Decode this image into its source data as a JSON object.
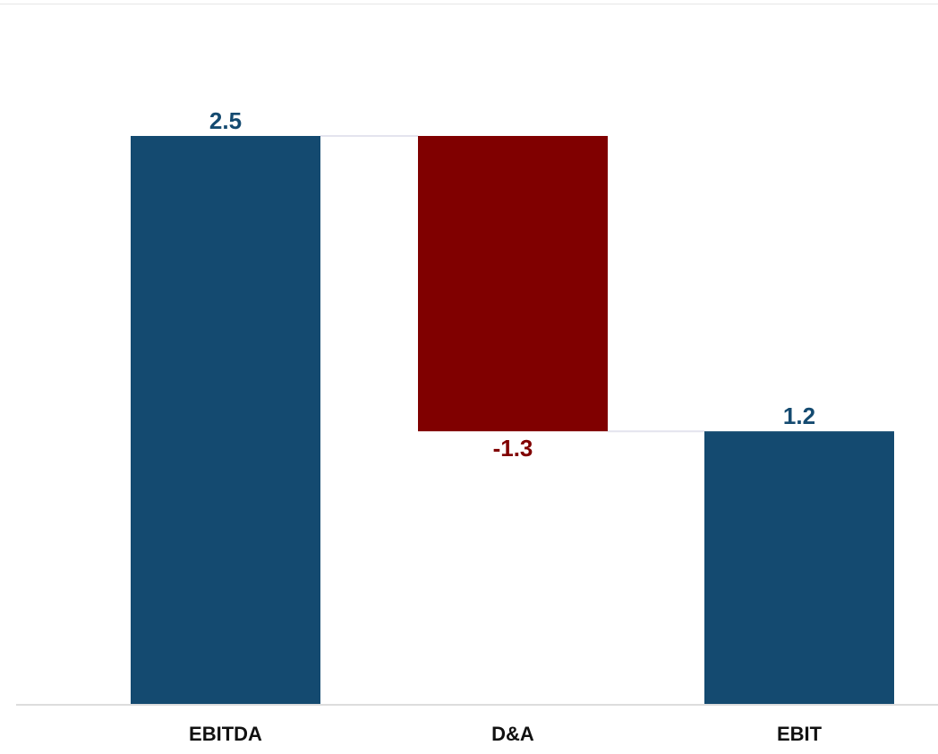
{
  "chart_data": {
    "type": "bar",
    "title": "",
    "xlabel": "",
    "ylabel": "",
    "categories": [
      "EBITDA",
      "D&A",
      "EBIT"
    ],
    "values": [
      2.5,
      -1.3,
      1.2
    ],
    "value_labels": [
      "2.5",
      "-1.3",
      "1.2"
    ],
    "bar_kinds": [
      "total",
      "decrease",
      "total"
    ],
    "ylim": [
      0,
      3
    ],
    "grid": false,
    "legend": "none",
    "colors": {
      "total": "#144a70",
      "decrease": "#800000",
      "connector": "#e4e4ee",
      "axis": "#dddddd"
    }
  }
}
